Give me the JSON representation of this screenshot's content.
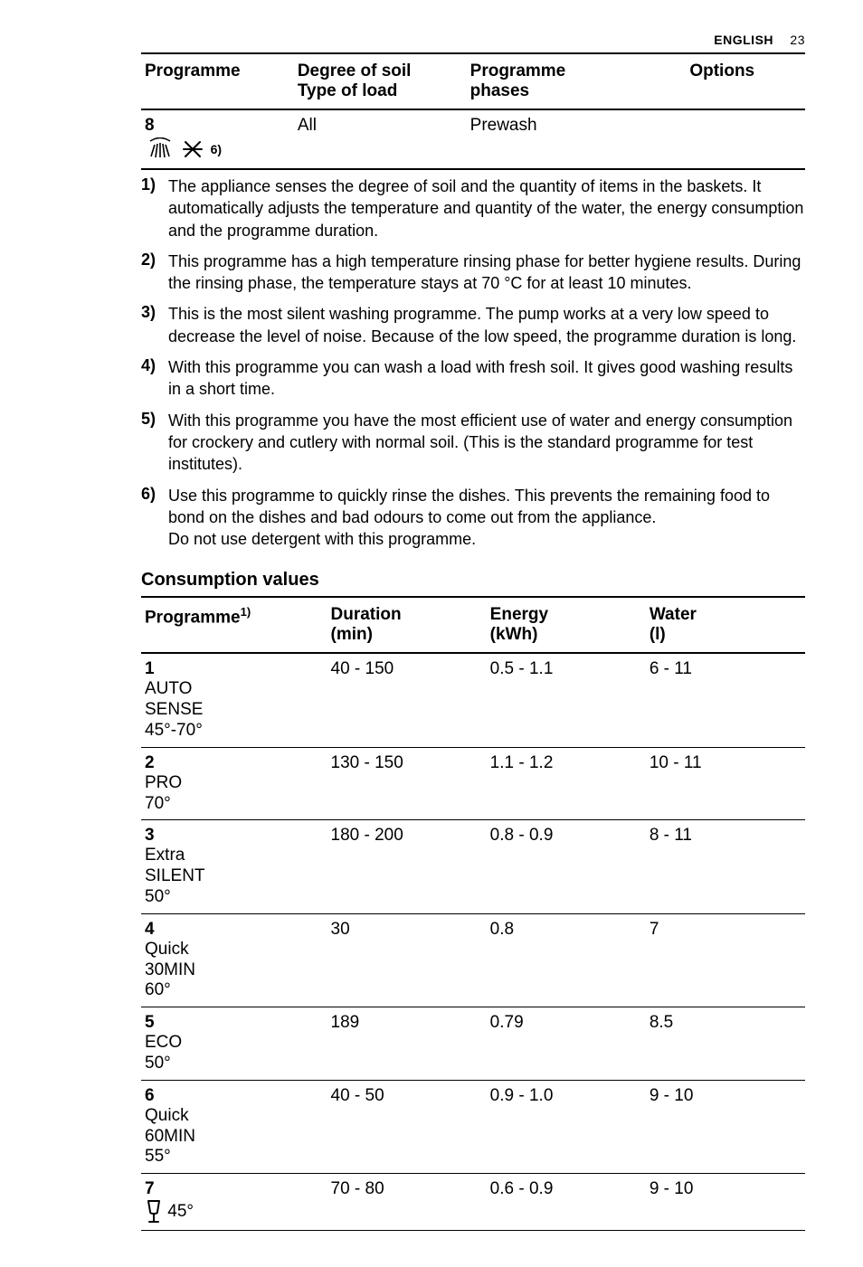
{
  "header": {
    "language": "ENGLISH",
    "page_number": "23"
  },
  "top_table": {
    "columns": [
      "Programme",
      "Degree of soil\nType of load",
      "Programme\nphases",
      "Options"
    ],
    "row": {
      "programme_num": "8",
      "footnote_ref": "6)",
      "soil": "All",
      "phases": "Prewash",
      "options": ""
    }
  },
  "footnotes": [
    {
      "n": "1)",
      "text": "The appliance senses the degree of soil and the quantity of items in the baskets. It automatically adjusts the temperature and quantity of the water, the energy consumption and the programme duration."
    },
    {
      "n": "2)",
      "text": "This programme has a high temperature rinsing phase for better hygiene results. During the rinsing phase, the temperature stays at 70 °C for at least 10 minutes."
    },
    {
      "n": "3)",
      "text": "This is the most silent washing programme. The pump works at a very low speed to decrease the level of noise. Because of the low speed, the programme duration is long."
    },
    {
      "n": "4)",
      "text": "With this programme you can wash a load with fresh soil. It gives good washing results in a short time."
    },
    {
      "n": "5)",
      "text": "With this programme you have the most efficient use of water and energy consumption for crockery and cutlery with normal soil. (This is the standard programme for test institutes)."
    },
    {
      "n": "6)",
      "text": "Use this programme to quickly rinse the dishes. This prevents the remaining food to bond on the dishes and bad odours to come out from the appliance.\nDo not use detergent with this programme."
    }
  ],
  "consumption_section": {
    "title": "Consumption values",
    "columns": {
      "programme": "Programme",
      "programme_sup": "1)",
      "duration": "Duration\n(min)",
      "energy": "Energy\n(kWh)",
      "water": "Water\n(l)"
    },
    "rows": [
      {
        "num": "1",
        "name_lines": [
          "AUTO",
          "SENSE",
          "45°-70°"
        ],
        "duration": "40 - 150",
        "energy": "0.5 - 1.1",
        "water": "6 - 11"
      },
      {
        "num": "2",
        "name_lines": [
          "PRO",
          "70°"
        ],
        "duration": "130 - 150",
        "energy": "1.1 - 1.2",
        "water": "10 - 11"
      },
      {
        "num": "3",
        "name_lines": [
          "Extra",
          "SILENT",
          "50°"
        ],
        "duration": "180 - 200",
        "energy": "0.8 - 0.9",
        "water": "8 - 11"
      },
      {
        "num": "4",
        "name_lines": [
          "Quick",
          "30MIN",
          "60°"
        ],
        "duration": "30",
        "energy": "0.8",
        "water": "7"
      },
      {
        "num": "5",
        "name_lines": [
          "ECO",
          "50°"
        ],
        "duration": "189",
        "energy": "0.79",
        "water": "8.5"
      },
      {
        "num": "6",
        "name_lines": [
          "Quick",
          "60MIN",
          "55°"
        ],
        "duration": "40 - 50",
        "energy": "0.9 - 1.0",
        "water": "9 - 10"
      },
      {
        "num": "7",
        "name_lines": [
          "45°"
        ],
        "icon": "glass",
        "duration": "70 - 80",
        "energy": "0.6 - 0.9",
        "water": "9 - 10"
      }
    ]
  },
  "style": {
    "page_bg": "#ffffff",
    "text_color": "#000000",
    "rule_color": "#000000",
    "base_fontsize_pt": 14,
    "heading_fontsize_pt": 15,
    "font_family": "Arial"
  }
}
